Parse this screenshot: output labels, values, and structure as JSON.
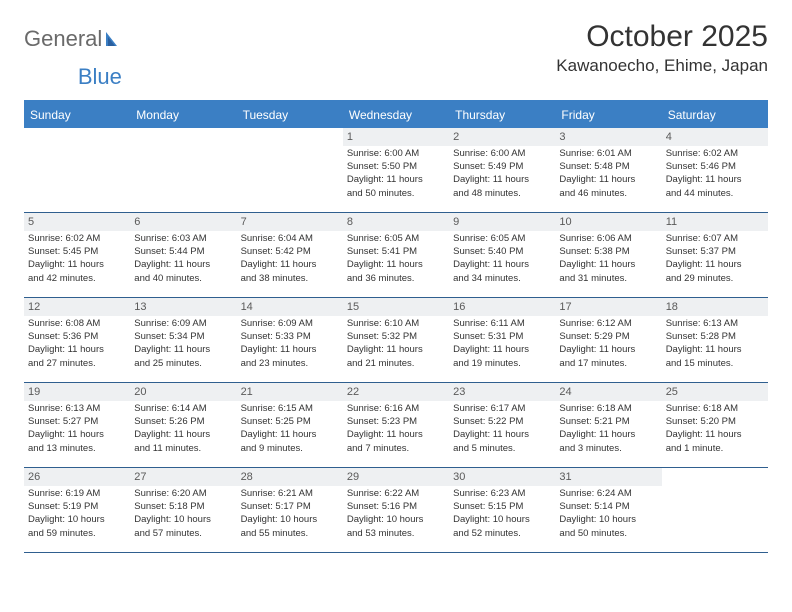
{
  "brand": {
    "part1": "General",
    "part2": "Blue"
  },
  "title": "October 2025",
  "location": "Kawanoecho, Ehime, Japan",
  "colors": {
    "accent": "#3b7fc4",
    "headerText": "#ffffff",
    "dayNumBg": "#eef0f2",
    "border": "#2f5f8f",
    "text": "#333333"
  },
  "dayHeaders": [
    "Sunday",
    "Monday",
    "Tuesday",
    "Wednesday",
    "Thursday",
    "Friday",
    "Saturday"
  ],
  "weeks": [
    [
      {
        "empty": true
      },
      {
        "empty": true
      },
      {
        "empty": true
      },
      {
        "num": "1",
        "sunrise": "Sunrise: 6:00 AM",
        "sunset": "Sunset: 5:50 PM",
        "day1": "Daylight: 11 hours",
        "day2": "and 50 minutes."
      },
      {
        "num": "2",
        "sunrise": "Sunrise: 6:00 AM",
        "sunset": "Sunset: 5:49 PM",
        "day1": "Daylight: 11 hours",
        "day2": "and 48 minutes."
      },
      {
        "num": "3",
        "sunrise": "Sunrise: 6:01 AM",
        "sunset": "Sunset: 5:48 PM",
        "day1": "Daylight: 11 hours",
        "day2": "and 46 minutes."
      },
      {
        "num": "4",
        "sunrise": "Sunrise: 6:02 AM",
        "sunset": "Sunset: 5:46 PM",
        "day1": "Daylight: 11 hours",
        "day2": "and 44 minutes."
      }
    ],
    [
      {
        "num": "5",
        "sunrise": "Sunrise: 6:02 AM",
        "sunset": "Sunset: 5:45 PM",
        "day1": "Daylight: 11 hours",
        "day2": "and 42 minutes."
      },
      {
        "num": "6",
        "sunrise": "Sunrise: 6:03 AM",
        "sunset": "Sunset: 5:44 PM",
        "day1": "Daylight: 11 hours",
        "day2": "and 40 minutes."
      },
      {
        "num": "7",
        "sunrise": "Sunrise: 6:04 AM",
        "sunset": "Sunset: 5:42 PM",
        "day1": "Daylight: 11 hours",
        "day2": "and 38 minutes."
      },
      {
        "num": "8",
        "sunrise": "Sunrise: 6:05 AM",
        "sunset": "Sunset: 5:41 PM",
        "day1": "Daylight: 11 hours",
        "day2": "and 36 minutes."
      },
      {
        "num": "9",
        "sunrise": "Sunrise: 6:05 AM",
        "sunset": "Sunset: 5:40 PM",
        "day1": "Daylight: 11 hours",
        "day2": "and 34 minutes."
      },
      {
        "num": "10",
        "sunrise": "Sunrise: 6:06 AM",
        "sunset": "Sunset: 5:38 PM",
        "day1": "Daylight: 11 hours",
        "day2": "and 31 minutes."
      },
      {
        "num": "11",
        "sunrise": "Sunrise: 6:07 AM",
        "sunset": "Sunset: 5:37 PM",
        "day1": "Daylight: 11 hours",
        "day2": "and 29 minutes."
      }
    ],
    [
      {
        "num": "12",
        "sunrise": "Sunrise: 6:08 AM",
        "sunset": "Sunset: 5:36 PM",
        "day1": "Daylight: 11 hours",
        "day2": "and 27 minutes."
      },
      {
        "num": "13",
        "sunrise": "Sunrise: 6:09 AM",
        "sunset": "Sunset: 5:34 PM",
        "day1": "Daylight: 11 hours",
        "day2": "and 25 minutes."
      },
      {
        "num": "14",
        "sunrise": "Sunrise: 6:09 AM",
        "sunset": "Sunset: 5:33 PM",
        "day1": "Daylight: 11 hours",
        "day2": "and 23 minutes."
      },
      {
        "num": "15",
        "sunrise": "Sunrise: 6:10 AM",
        "sunset": "Sunset: 5:32 PM",
        "day1": "Daylight: 11 hours",
        "day2": "and 21 minutes."
      },
      {
        "num": "16",
        "sunrise": "Sunrise: 6:11 AM",
        "sunset": "Sunset: 5:31 PM",
        "day1": "Daylight: 11 hours",
        "day2": "and 19 minutes."
      },
      {
        "num": "17",
        "sunrise": "Sunrise: 6:12 AM",
        "sunset": "Sunset: 5:29 PM",
        "day1": "Daylight: 11 hours",
        "day2": "and 17 minutes."
      },
      {
        "num": "18",
        "sunrise": "Sunrise: 6:13 AM",
        "sunset": "Sunset: 5:28 PM",
        "day1": "Daylight: 11 hours",
        "day2": "and 15 minutes."
      }
    ],
    [
      {
        "num": "19",
        "sunrise": "Sunrise: 6:13 AM",
        "sunset": "Sunset: 5:27 PM",
        "day1": "Daylight: 11 hours",
        "day2": "and 13 minutes."
      },
      {
        "num": "20",
        "sunrise": "Sunrise: 6:14 AM",
        "sunset": "Sunset: 5:26 PM",
        "day1": "Daylight: 11 hours",
        "day2": "and 11 minutes."
      },
      {
        "num": "21",
        "sunrise": "Sunrise: 6:15 AM",
        "sunset": "Sunset: 5:25 PM",
        "day1": "Daylight: 11 hours",
        "day2": "and 9 minutes."
      },
      {
        "num": "22",
        "sunrise": "Sunrise: 6:16 AM",
        "sunset": "Sunset: 5:23 PM",
        "day1": "Daylight: 11 hours",
        "day2": "and 7 minutes."
      },
      {
        "num": "23",
        "sunrise": "Sunrise: 6:17 AM",
        "sunset": "Sunset: 5:22 PM",
        "day1": "Daylight: 11 hours",
        "day2": "and 5 minutes."
      },
      {
        "num": "24",
        "sunrise": "Sunrise: 6:18 AM",
        "sunset": "Sunset: 5:21 PM",
        "day1": "Daylight: 11 hours",
        "day2": "and 3 minutes."
      },
      {
        "num": "25",
        "sunrise": "Sunrise: 6:18 AM",
        "sunset": "Sunset: 5:20 PM",
        "day1": "Daylight: 11 hours",
        "day2": "and 1 minute."
      }
    ],
    [
      {
        "num": "26",
        "sunrise": "Sunrise: 6:19 AM",
        "sunset": "Sunset: 5:19 PM",
        "day1": "Daylight: 10 hours",
        "day2": "and 59 minutes."
      },
      {
        "num": "27",
        "sunrise": "Sunrise: 6:20 AM",
        "sunset": "Sunset: 5:18 PM",
        "day1": "Daylight: 10 hours",
        "day2": "and 57 minutes."
      },
      {
        "num": "28",
        "sunrise": "Sunrise: 6:21 AM",
        "sunset": "Sunset: 5:17 PM",
        "day1": "Daylight: 10 hours",
        "day2": "and 55 minutes."
      },
      {
        "num": "29",
        "sunrise": "Sunrise: 6:22 AM",
        "sunset": "Sunset: 5:16 PM",
        "day1": "Daylight: 10 hours",
        "day2": "and 53 minutes."
      },
      {
        "num": "30",
        "sunrise": "Sunrise: 6:23 AM",
        "sunset": "Sunset: 5:15 PM",
        "day1": "Daylight: 10 hours",
        "day2": "and 52 minutes."
      },
      {
        "num": "31",
        "sunrise": "Sunrise: 6:24 AM",
        "sunset": "Sunset: 5:14 PM",
        "day1": "Daylight: 10 hours",
        "day2": "and 50 minutes."
      },
      {
        "empty": true
      }
    ]
  ]
}
